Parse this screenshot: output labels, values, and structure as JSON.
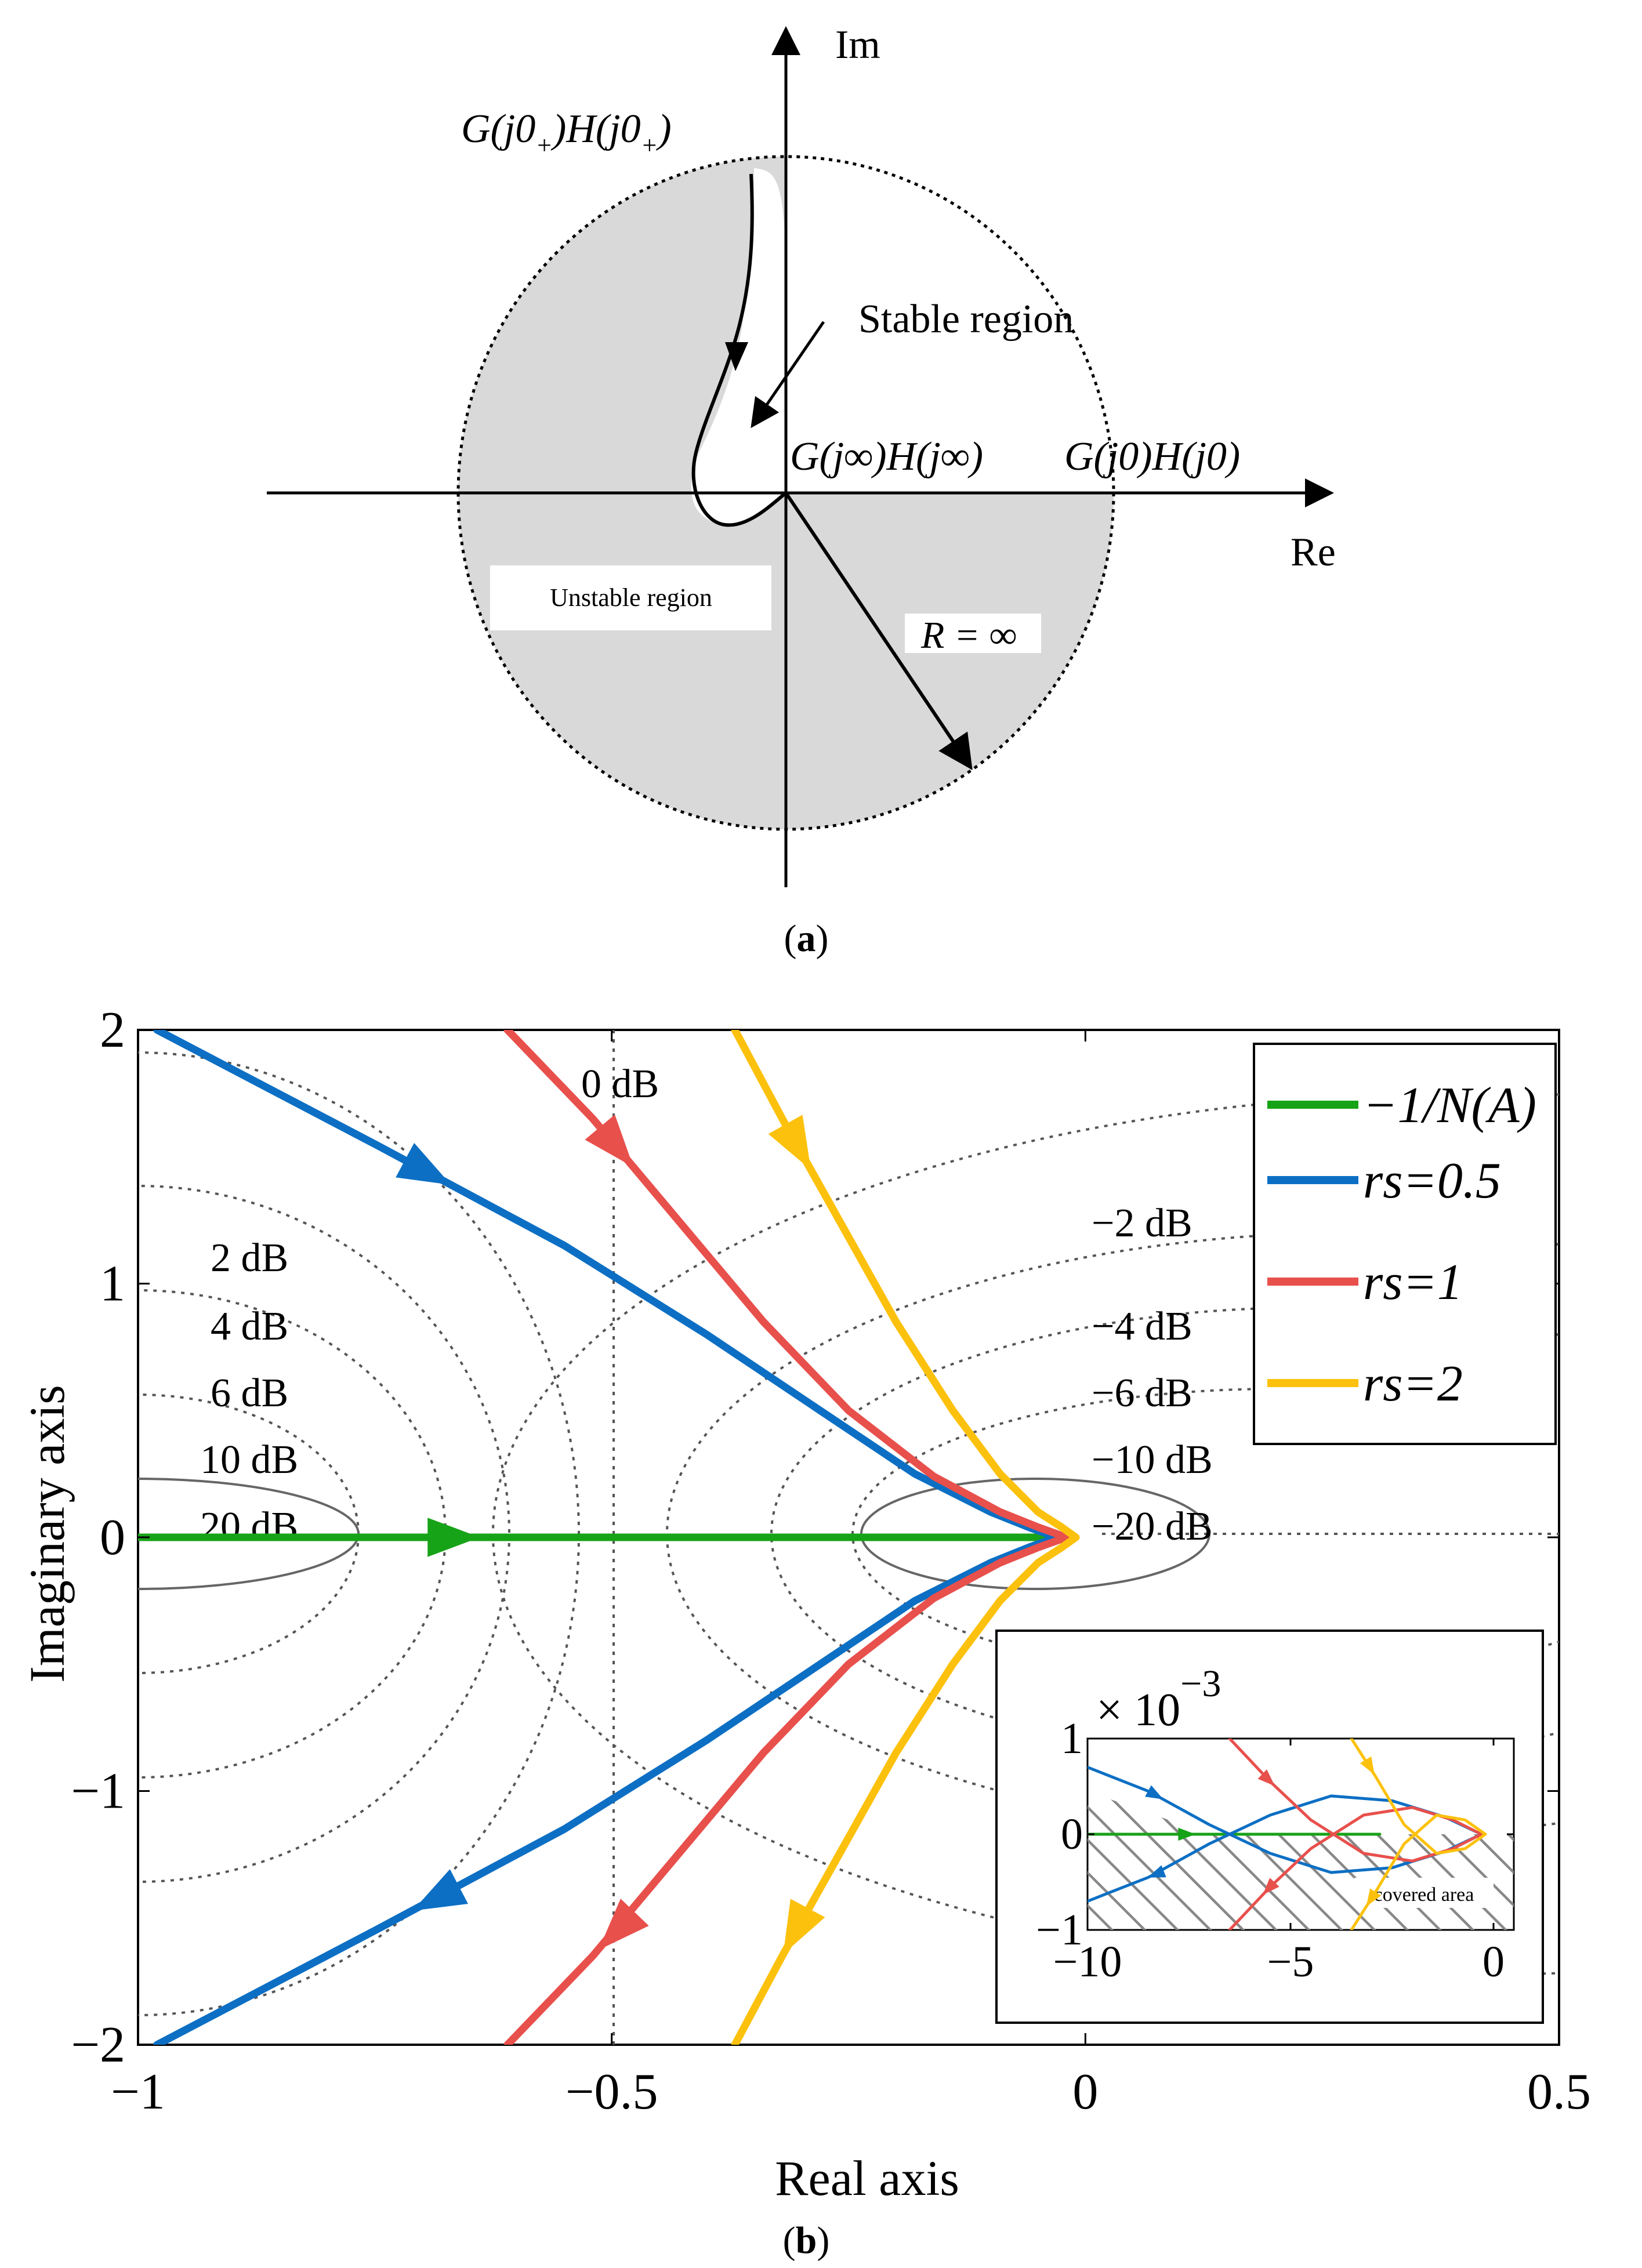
{
  "panel_a": {
    "caption_open": "(",
    "caption_letter": "a",
    "caption_close": ")",
    "im_label": "Im",
    "re_label": "Re",
    "start_label": "G(j0+)H(j0+)",
    "stable_label": "Stable region",
    "unstable_label": "Unstable region",
    "inf_label": "G(j∞)H(j∞)",
    "zero_label": "G(j0)H(j0)",
    "radius_label": "R = ∞",
    "colors": {
      "region_fill": "#d9d9d9",
      "line": "#000000"
    }
  },
  "panel_b": {
    "caption_open": "(",
    "caption_letter": "b",
    "caption_close": ")",
    "inset_scale_prefix": "× 10",
    "inset_scale_exp": "−3",
    "inset_covered_label": "covered area"
  },
  "chart_data": [
    {
      "type": "line",
      "xlabel": "Real axis",
      "ylabel": "Imaginary axis",
      "xlim": [
        -1,
        0.5
      ],
      "ylim": [
        -2,
        2
      ],
      "xticks": [
        -1,
        -0.5,
        0,
        0.5
      ],
      "xtick_labels": [
        "−1",
        "−0.5",
        "0",
        "0.5"
      ],
      "yticks": [
        -2,
        -1,
        0,
        1,
        2
      ],
      "ytick_labels": [
        "−2",
        "−1",
        "0",
        "1",
        "2"
      ],
      "grid": false,
      "legend_placement": "top-right",
      "legend": [
        {
          "name": "−1/N(A)",
          "color": "#17a317"
        },
        {
          "name": "rs=0.5",
          "color": "#0c6fc4"
        },
        {
          "name": "rs=1",
          "color": "#e8504c"
        },
        {
          "name": "rs=2",
          "color": "#fcc10c"
        }
      ],
      "series": [
        {
          "name": "−1/N(A)",
          "color": "#17a317",
          "x": [
            -1,
            -0.02
          ],
          "y": [
            0,
            0
          ]
        },
        {
          "name": "rs=0.5",
          "color": "#0c6fc4",
          "x": [
            -0.98,
            -0.75,
            -0.55,
            -0.4,
            -0.28,
            -0.18,
            -0.1,
            -0.06,
            -0.03,
            -0.06,
            -0.1,
            -0.18,
            -0.28,
            -0.4,
            -0.55,
            -0.75,
            -0.98
          ],
          "y": [
            2.0,
            1.55,
            1.15,
            0.8,
            0.5,
            0.25,
            0.1,
            0.04,
            0,
            -0.04,
            -0.1,
            -0.25,
            -0.5,
            -0.8,
            -1.15,
            -1.55,
            -2.0
          ]
        },
        {
          "name": "rs=1",
          "color": "#e8504c",
          "x": [
            -0.61,
            -0.52,
            -0.43,
            -0.34,
            -0.25,
            -0.16,
            -0.09,
            -0.05,
            -0.02,
            -0.05,
            -0.09,
            -0.16,
            -0.25,
            -0.34,
            -0.43,
            -0.52,
            -0.61
          ],
          "y": [
            2.0,
            1.65,
            1.25,
            0.85,
            0.5,
            0.24,
            0.1,
            0.04,
            0,
            -0.04,
            -0.1,
            -0.24,
            -0.5,
            -0.85,
            -1.25,
            -1.65,
            -2.0
          ]
        },
        {
          "name": "rs=2",
          "color": "#fcc10c",
          "x": [
            -0.37,
            -0.32,
            -0.26,
            -0.2,
            -0.14,
            -0.09,
            -0.05,
            -0.025,
            -0.01,
            -0.025,
            -0.05,
            -0.09,
            -0.14,
            -0.2,
            -0.26,
            -0.32,
            -0.37
          ],
          "y": [
            2.0,
            1.65,
            1.25,
            0.85,
            0.5,
            0.25,
            0.1,
            0.04,
            0,
            -0.04,
            -0.1,
            -0.25,
            -0.5,
            -0.85,
            -1.25,
            -1.65,
            -2.0
          ]
        }
      ],
      "annotations": [
        "0 dB",
        "2 dB",
        "4 dB",
        "6 dB",
        "10 dB",
        "20 dB",
        "−2 dB",
        "−4 dB",
        "−6 dB",
        "−10 dB",
        "−20 dB"
      ]
    },
    {
      "type": "line",
      "title": "× 10−3",
      "xlim": [
        -10,
        0.5
      ],
      "ylim": [
        -1,
        1
      ],
      "xticks": [
        -10,
        -5,
        0
      ],
      "xtick_labels": [
        "−10",
        "−5",
        "0"
      ],
      "yticks": [
        -1,
        0,
        1
      ],
      "ytick_labels": [
        "−1",
        "0",
        "1"
      ],
      "annotations": [
        "covered area"
      ],
      "series": [
        {
          "name": "−1/N(A)",
          "color": "#17a317",
          "x": [
            -10,
            -2.8
          ],
          "y": [
            0,
            0
          ]
        },
        {
          "name": "rs=0.5",
          "color": "#0c6fc4",
          "x": [
            -10,
            -8.5,
            -7,
            -5.5,
            -4,
            -2.5,
            -1.2,
            -0.3,
            -1.2,
            -2.5,
            -4,
            -5.5,
            -7,
            -8.5,
            -10
          ],
          "y": [
            0.7,
            0.45,
            0.1,
            -0.2,
            -0.4,
            -0.35,
            -0.18,
            0,
            0.18,
            0.35,
            0.4,
            0.2,
            -0.1,
            -0.45,
            -0.7
          ]
        },
        {
          "name": "rs=1",
          "color": "#e8504c",
          "x": [
            -6.5,
            -5.5,
            -4.5,
            -3.2,
            -2,
            -1,
            -0.3,
            -1,
            -2,
            -3.2,
            -4.5,
            -5.5,
            -6.5
          ],
          "y": [
            1.0,
            0.55,
            0.15,
            -0.2,
            -0.28,
            -0.15,
            0,
            0.15,
            0.28,
            0.2,
            -0.15,
            -0.55,
            -1.0
          ]
        },
        {
          "name": "rs=2",
          "color": "#fcc10c",
          "x": [
            -3.5,
            -2.9,
            -2.2,
            -1.4,
            -0.7,
            -0.2,
            -0.7,
            -1.4,
            -2.2,
            -2.9,
            -3.5
          ],
          "y": [
            1.0,
            0.6,
            0.1,
            -0.2,
            -0.15,
            0,
            0.15,
            0.2,
            -0.1,
            -0.6,
            -1.0
          ]
        }
      ]
    }
  ]
}
